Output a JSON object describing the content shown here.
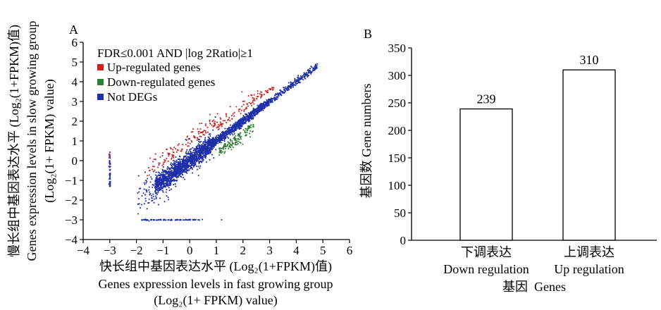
{
  "chart_data": [
    {
      "panel": "A",
      "type": "scatter",
      "legend_title": "FDR≤0.001 AND |log 2Ratio|≥1",
      "legend_placement": "top-left",
      "legend": [
        {
          "name": "Up-regulated genes",
          "color": "#cc2222"
        },
        {
          "name": "Down-regulated genes",
          "color": "#2e7d32"
        },
        {
          "name": "Not DEGs",
          "color": "#1f2fa8"
        }
      ],
      "xlabel_lines": [
        "快长组中基因表达水平 (Log₂(1+FPKM)值)",
        "Genes expression levels in fast growing group",
        "(Log₂(1+ FPKM) value)"
      ],
      "ylabel_lines": [
        "慢长组中基因表达水平 (Log₂(1+FPKM)值)",
        "Genes expression levels in slow growing group",
        "(Log₂(1+ FPKM) value)"
      ],
      "xlim": [
        -4,
        6
      ],
      "ylim": [
        -4,
        6
      ],
      "xticks": [
        "−4",
        "−3",
        "−2",
        "−1",
        "0",
        "1",
        "2",
        "3",
        "4",
        "5",
        "6"
      ],
      "yticks": [
        "−4",
        "−3",
        "−2",
        "−1",
        "0",
        "1",
        "2",
        "3",
        "4",
        "5",
        "6"
      ],
      "grid": false,
      "series": [
        {
          "name": "Not DEGs",
          "color": "#1f2fa8",
          "description": "dense diagonal cloud y≈x from about −2 to 4.8, vertical line at x=−3 (y −1.3 to 0.5), horizontal line at y=−3 (x −1.8 to 0.5)"
        },
        {
          "name": "Up-regulated genes",
          "color": "#cc2222",
          "description": "points above the diagonal cloud, x ≈ −1.8 to 3.2, y ≈ 0.5 to 3.6; a few at x=−3"
        },
        {
          "name": "Down-regulated genes",
          "color": "#2e7d32",
          "description": "points below the diagonal cloud, x ≈ 1.2 to 2.3, y ≈ 0.4 to 1.8"
        }
      ]
    },
    {
      "panel": "B",
      "type": "bar",
      "categories": [
        {
          "zh": "下调表达",
          "en": "Down regulation"
        },
        {
          "zh": "上调表达",
          "en": "Up regulation"
        }
      ],
      "values": [
        239,
        310
      ],
      "value_labels": [
        "239",
        "310"
      ],
      "xlabel": "基因  Genes",
      "ylabel": "基因数 Gene numbers",
      "ylim": [
        0,
        350
      ],
      "yticks": [
        "0",
        "50",
        "100",
        "150",
        "200",
        "250",
        "300",
        "350"
      ],
      "grid": false
    }
  ]
}
